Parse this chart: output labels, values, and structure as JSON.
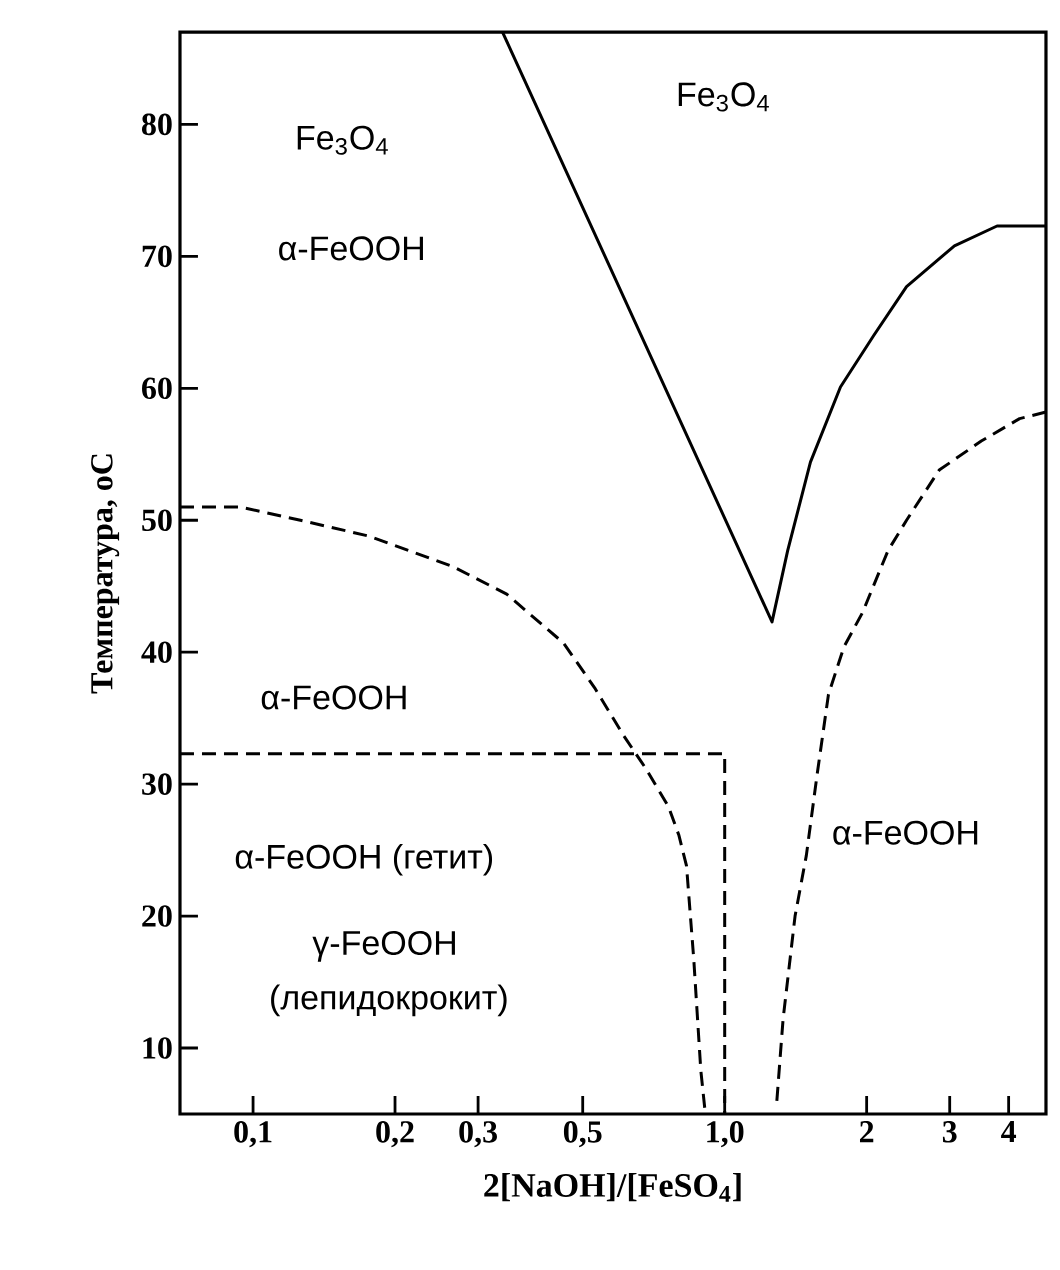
{
  "chart_data": {
    "type": "line",
    "xlabel": "2[NaOH]/[FeSO$_{4}$]",
    "ylabel": "Температура, оС",
    "log": "x",
    "marker": "none",
    "grid": false,
    "xlim": [
      0.07,
      4.8
    ],
    "ylim": [
      5,
      87
    ],
    "xticks": [
      {
        "value": 0.1,
        "label": "0,1"
      },
      {
        "value": 0.2,
        "label": "0,2"
      },
      {
        "value": 0.3,
        "label": "0,3"
      },
      {
        "value": 0.5,
        "label": "0,5"
      },
      {
        "value": 1.0,
        "label": "1,0"
      },
      2,
      3,
      4
    ],
    "yticks": [
      10,
      20,
      30,
      40,
      50,
      60,
      70,
      80
    ],
    "series": [
      {
        "color": "#000000",
        "line_style": "dashed",
        "x": [
          0.07,
          0.094,
          0.126,
          0.176,
          0.265,
          0.345,
          0.455,
          0.53,
          0.61,
          0.68,
          0.76,
          0.8,
          0.83,
          0.86,
          0.89,
          0.91
        ],
        "values": [
          51,
          51,
          50,
          48.8,
          46.5,
          44.4,
          40.7,
          37.3,
          33.7,
          31.2,
          28.3,
          26.1,
          23.8,
          16.7,
          8.3,
          5
        ]
      },
      {
        "color": "#000000",
        "line_style": "dashed",
        "x": [
          0.07,
          1.0,
          1.0
        ],
        "values": [
          32.3,
          32.3,
          5
        ]
      },
      {
        "color": "#000000",
        "line_style": "dashed",
        "x": [
          1.29,
          1.33,
          1.41,
          1.49,
          1.57,
          1.66,
          1.79,
          1.96,
          2.22,
          2.43,
          2.85,
          3.5,
          4.22,
          4.8
        ],
        "values": [
          6,
          12.2,
          20,
          24.6,
          30.7,
          36.8,
          40.4,
          43,
          47.7,
          50,
          53.8,
          56,
          57.7,
          58.2
        ]
      },
      {
        "color": "#000000",
        "line_style": "solid",
        "x": [
          0.338,
          1.26,
          1.36,
          1.52,
          1.76,
          2.07,
          2.43,
          3.07,
          3.78,
          4.8
        ],
        "values": [
          87,
          42.3,
          47.7,
          54.4,
          60.1,
          64,
          67.7,
          70.8,
          72.3,
          72.3
        ]
      }
    ],
    "annotations": [
      "Fe$_{3}$O$_{4}$",
      "α-FeOOH",
      "Fe$_{3}$O$_{4}$",
      "α-FeOOH",
      "α-FeOOH (гетит)",
      "γ-FeOOH",
      "(лепидокрокит)",
      "α-FeOOH"
    ]
  }
}
